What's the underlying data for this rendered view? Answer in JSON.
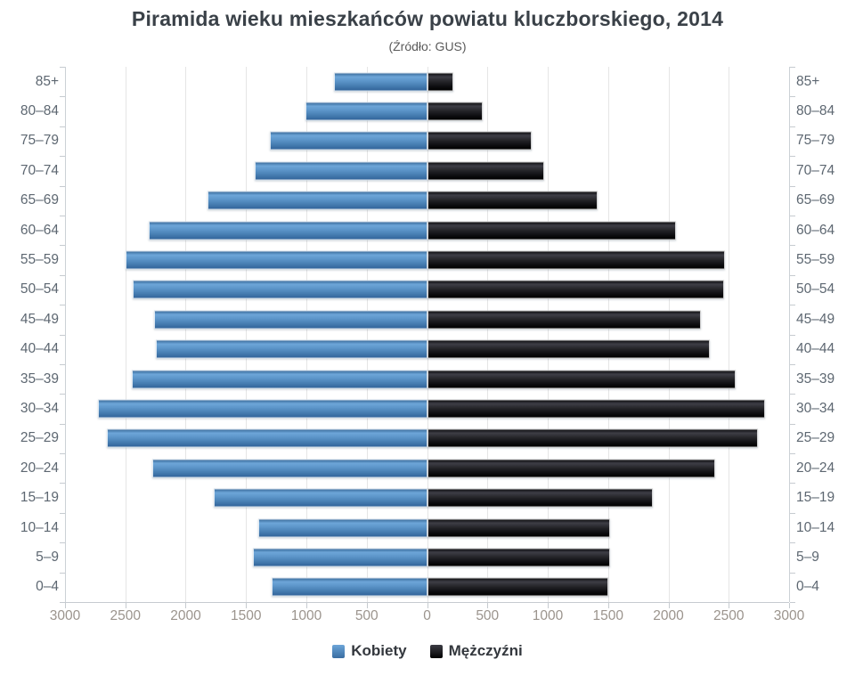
{
  "chart_data": {
    "type": "bar",
    "variant": "population-pyramid",
    "title": "Piramida wieku mieszkańców powiatu kluczborskiego, 2014",
    "subtitle": "(Źródło: GUS)",
    "categories": [
      "85+",
      "80–84",
      "75–79",
      "70–74",
      "65–69",
      "60–64",
      "55–59",
      "50–54",
      "45–49",
      "40–44",
      "35–39",
      "30–34",
      "25–29",
      "20–24",
      "15–19",
      "10–14",
      "5–9",
      "0–4"
    ],
    "series": [
      {
        "name": "Kobiety",
        "side": "left",
        "color": "#4f87bd",
        "values": [
          770,
          1010,
          1300,
          1430,
          1820,
          2310,
          2500,
          2440,
          2260,
          2250,
          2450,
          2730,
          2650,
          2280,
          1770,
          1400,
          1440,
          1290
        ]
      },
      {
        "name": "Mężczyźni",
        "side": "right",
        "color": "#141417",
        "values": [
          220,
          460,
          870,
          970,
          1410,
          2060,
          2470,
          2460,
          2270,
          2340,
          2560,
          2800,
          2740,
          2390,
          1870,
          1520,
          1520,
          1500
        ]
      }
    ],
    "value_axis": {
      "min": 0,
      "max": 3000,
      "tick_interval": 500,
      "ticks": [
        3000,
        2500,
        2000,
        1500,
        1000,
        500,
        0,
        500,
        1000,
        1500,
        2000,
        2500,
        3000
      ]
    },
    "grid": true,
    "legend_position": "bottom",
    "axis_label_color": "#5d6771",
    "tick_label_color": "#9b948d"
  }
}
